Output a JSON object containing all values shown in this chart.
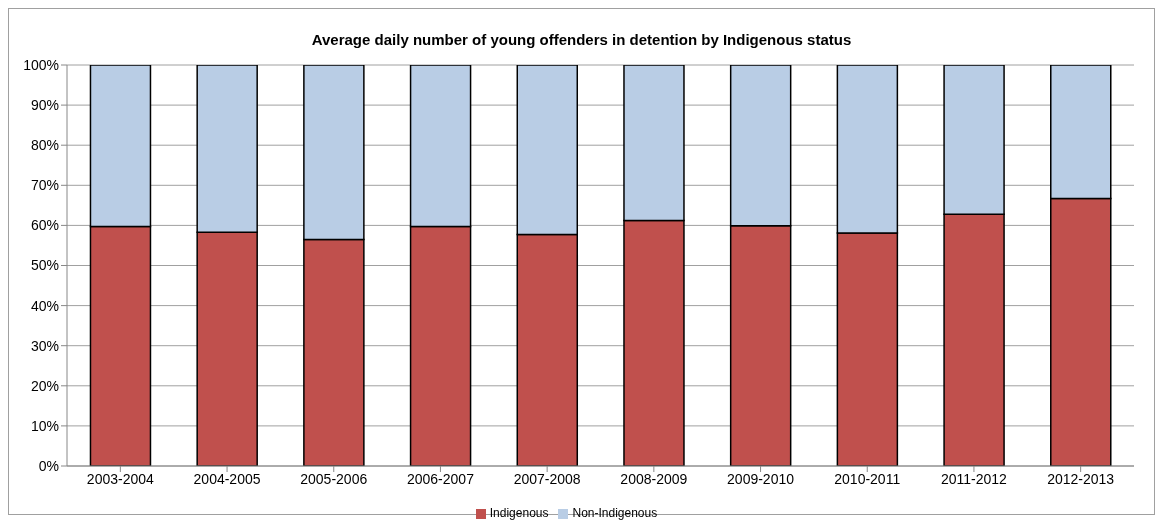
{
  "chart_data": {
    "type": "bar",
    "title": "Average daily number of young offenders in detention by Indigenous status",
    "categories": [
      "2003-2004",
      "2004-2005",
      "2005-2006",
      "2006-2007",
      "2007-2008",
      "2008-2009",
      "2009-2010",
      "2010-2011",
      "2011-2012",
      "2012-2013"
    ],
    "stacked": true,
    "series": [
      {
        "name": "Indigenous",
        "color": "#c0504d",
        "values": [
          59.7,
          58.3,
          56.5,
          59.7,
          57.7,
          61.2,
          59.9,
          58.1,
          62.8,
          66.7
        ]
      },
      {
        "name": "Non-Indigenous",
        "color": "#b9cde5",
        "values": [
          40.3,
          41.7,
          43.5,
          40.3,
          42.3,
          38.8,
          40.1,
          41.9,
          37.2,
          33.3
        ]
      }
    ],
    "ylim": [
      0,
      100
    ],
    "yticks": [
      {
        "value": 0,
        "label": "0%"
      },
      {
        "value": 10,
        "label": "10%"
      },
      {
        "value": 20,
        "label": "20%"
      },
      {
        "value": 30,
        "label": "30%"
      },
      {
        "value": 40,
        "label": "40%"
      },
      {
        "value": 50,
        "label": "50%"
      },
      {
        "value": 60,
        "label": "60%"
      },
      {
        "value": 70,
        "label": "70%"
      },
      {
        "value": 80,
        "label": "80%"
      },
      {
        "value": 90,
        "label": "90%"
      },
      {
        "value": 100,
        "label": "100%"
      }
    ],
    "grid": "y",
    "legend": "bottom"
  }
}
